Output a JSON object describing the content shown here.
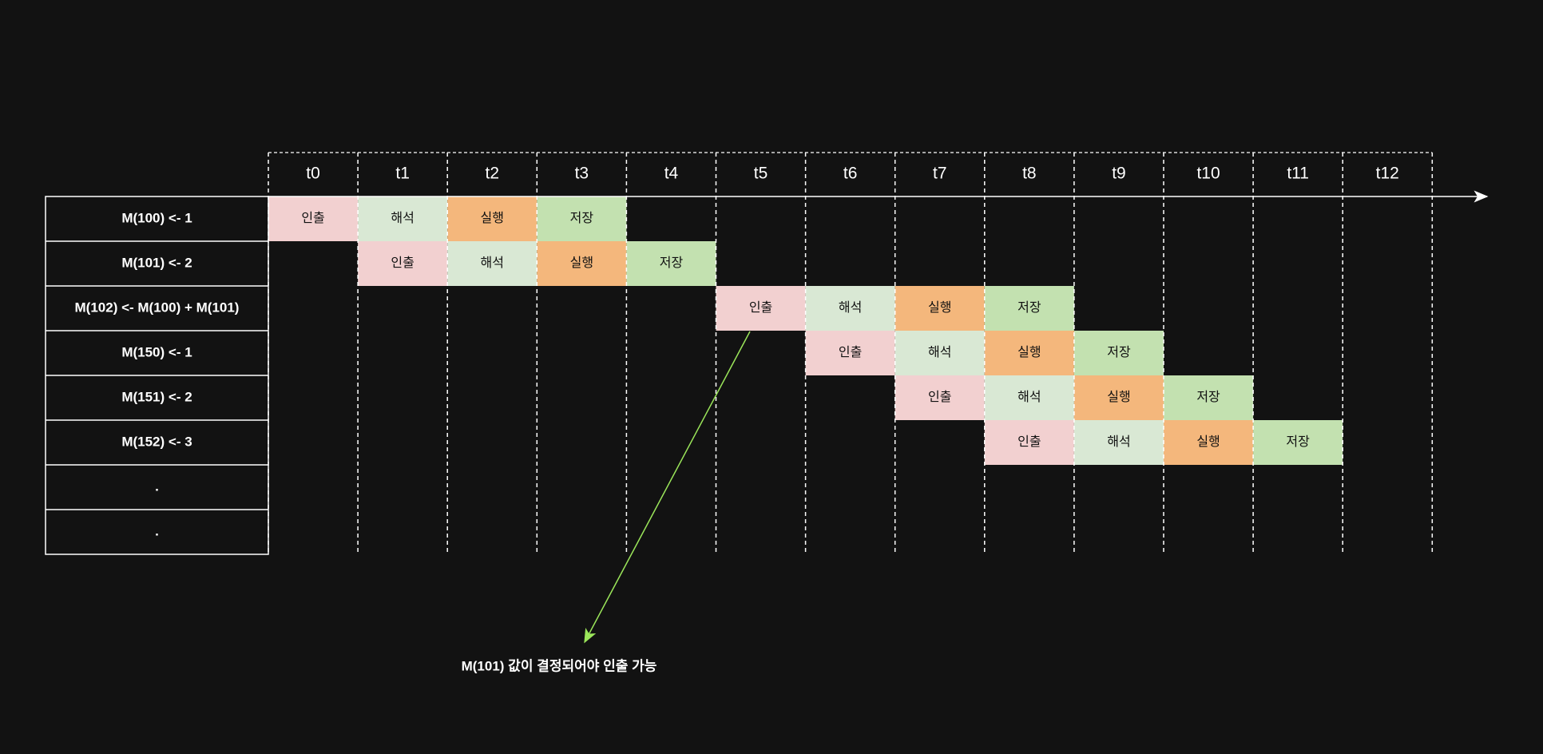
{
  "times": [
    "t0",
    "t1",
    "t2",
    "t3",
    "t4",
    "t5",
    "t6",
    "t7",
    "t8",
    "t9",
    "t10",
    "t11",
    "t12"
  ],
  "rows": [
    {
      "label": "M(100) <- 1",
      "cells": [
        "인출",
        "해석",
        "실행",
        "저장",
        null,
        null,
        null,
        null,
        null,
        null,
        null,
        null,
        null
      ]
    },
    {
      "label": "M(101) <- 2",
      "cells": [
        null,
        "인출",
        "해석",
        "실행",
        "저장",
        null,
        null,
        null,
        null,
        null,
        null,
        null,
        null
      ]
    },
    {
      "label": "M(102) <- M(100) + M(101)",
      "cells": [
        null,
        null,
        null,
        null,
        null,
        "인출",
        "해석",
        "실행",
        "저장",
        null,
        null,
        null,
        null
      ]
    },
    {
      "label": "M(150) <- 1",
      "cells": [
        null,
        null,
        null,
        null,
        null,
        null,
        "인출",
        "해석",
        "실행",
        "저장",
        null,
        null,
        null
      ]
    },
    {
      "label": "M(151) <- 2",
      "cells": [
        null,
        null,
        null,
        null,
        null,
        null,
        null,
        "인출",
        "해석",
        "실행",
        "저장",
        null,
        null
      ]
    },
    {
      "label": "M(152) <- 3",
      "cells": [
        null,
        null,
        null,
        null,
        null,
        null,
        null,
        null,
        "인출",
        "해석",
        "실행",
        "저장",
        null
      ]
    },
    {
      "label": ".",
      "cells": [
        null,
        null,
        null,
        null,
        null,
        null,
        null,
        null,
        null,
        null,
        null,
        null,
        null
      ]
    },
    {
      "label": ".",
      "cells": [
        null,
        null,
        null,
        null,
        null,
        null,
        null,
        null,
        null,
        null,
        null,
        null,
        null
      ]
    }
  ],
  "stage_colors": {
    "인출": "#f2d0d0",
    "해석": "#d9e8d4",
    "실행": "#f4b77c",
    "저장": "#c3e1b0"
  },
  "annotation": "M(101) 값이 결정되어야 인출 가능"
}
